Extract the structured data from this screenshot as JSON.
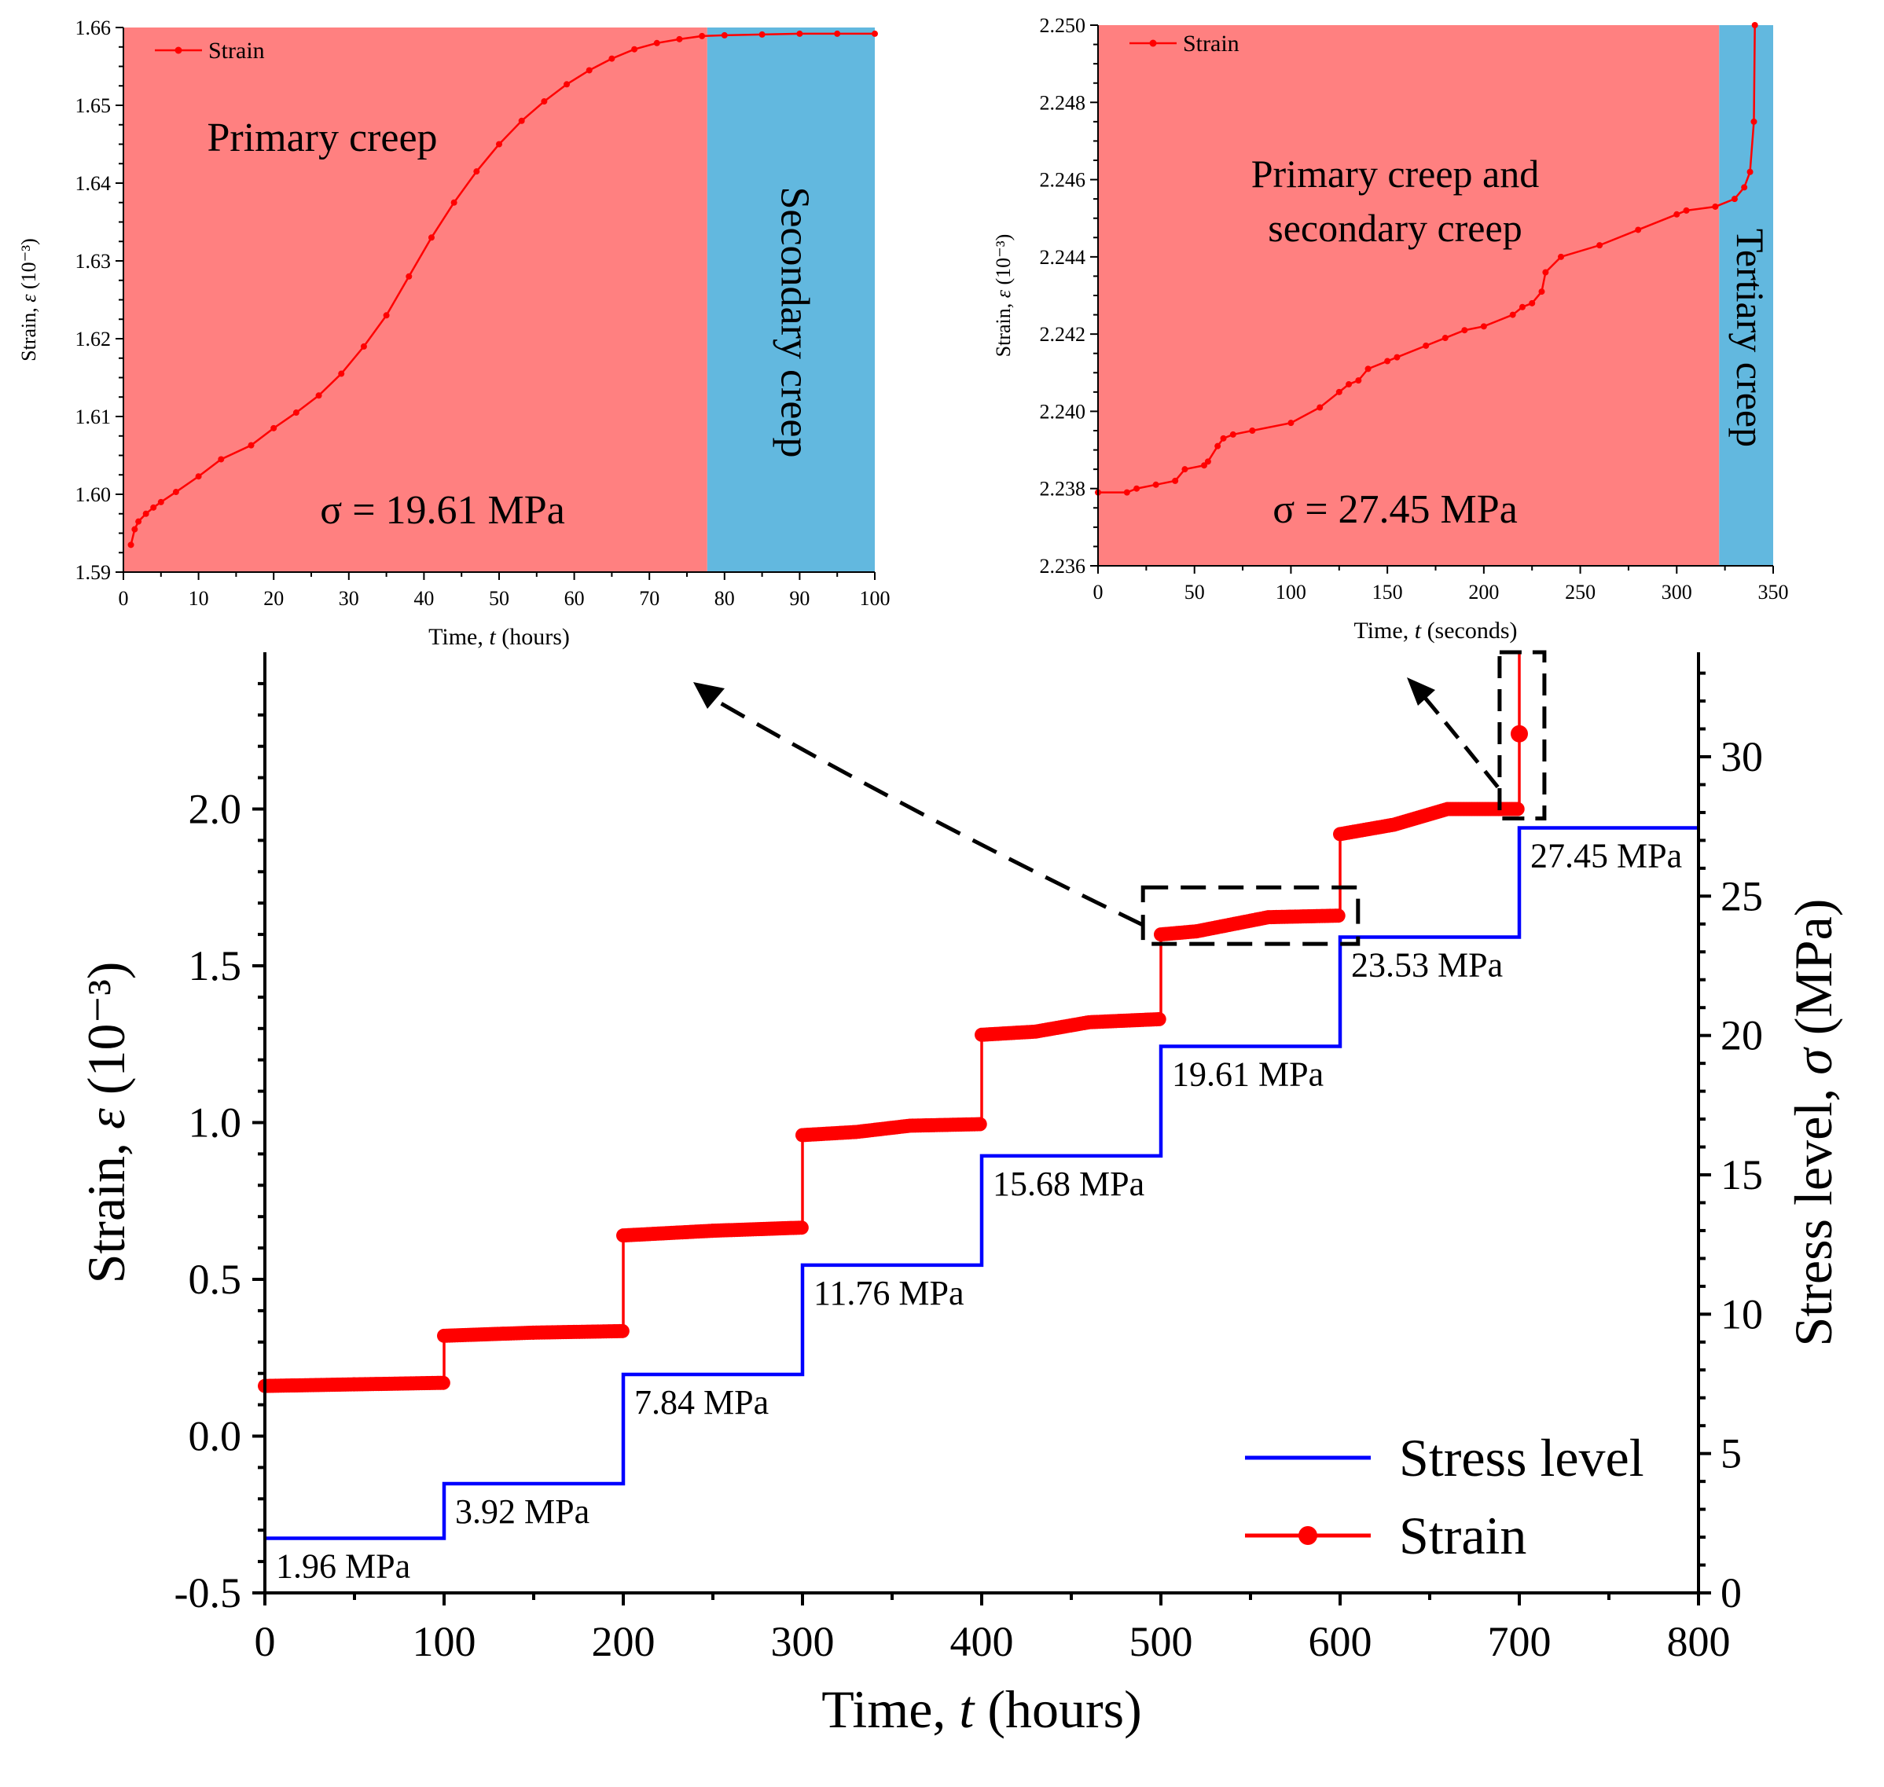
{
  "colors": {
    "strain": "#ff0000",
    "stress": "#0000ff",
    "primary_region": "#ff8080",
    "secondary_region": "#62b8df",
    "axis": "#000000"
  },
  "chart_data": [
    {
      "id": "inset-primary-secondary",
      "type": "line",
      "xlabel": "Time, t (hours)",
      "ylabel": "Strain, ε (10⁻³)",
      "xlim": [
        0,
        100
      ],
      "ylim": [
        1.59,
        1.66
      ],
      "xticks": [
        0,
        10,
        20,
        30,
        40,
        50,
        60,
        70,
        80,
        90,
        100
      ],
      "yticks": [
        1.59,
        1.6,
        1.61,
        1.62,
        1.63,
        1.64,
        1.65,
        1.66
      ],
      "ytick_labels": [
        "1.59",
        "1.60",
        "1.61",
        "1.62",
        "1.63",
        "1.64",
        "1.65",
        "1.66"
      ],
      "legend": "Strain",
      "stress_label": "σ = 19.61 MPa",
      "regions": [
        {
          "label": "Primary creep",
          "x_from": 0,
          "x_to": 77.7,
          "color_key": "primary_region"
        },
        {
          "label": "Secondary creep",
          "x_from": 77.7,
          "x_to": 100,
          "color_key": "secondary_region"
        }
      ],
      "series": [
        {
          "name": "Strain",
          "x": [
            1,
            1.5,
            2,
            3,
            4,
            5,
            7,
            10,
            13,
            17,
            20,
            23,
            26,
            29,
            32,
            35,
            38,
            41,
            44,
            47,
            50,
            53,
            56,
            59,
            62,
            65,
            68,
            71,
            74,
            77,
            80,
            85,
            90,
            95,
            100
          ],
          "y": [
            1.5935,
            1.5955,
            1.5965,
            1.5975,
            1.5983,
            1.599,
            1.6003,
            1.6023,
            1.6045,
            1.6063,
            1.6085,
            1.6105,
            1.6127,
            1.6155,
            1.619,
            1.623,
            1.628,
            1.633,
            1.6375,
            1.6415,
            1.645,
            1.648,
            1.6505,
            1.6527,
            1.6545,
            1.656,
            1.6572,
            1.658,
            1.6585,
            1.6589,
            1.659,
            1.6591,
            1.6592,
            1.6592,
            1.6592
          ]
        }
      ]
    },
    {
      "id": "inset-tertiary",
      "type": "line",
      "xlabel": "Time, t (seconds)",
      "ylabel": "Strain, ε (10⁻³)",
      "xlim": [
        0,
        350
      ],
      "ylim": [
        2.236,
        2.25
      ],
      "xticks": [
        0,
        50,
        100,
        150,
        200,
        250,
        300,
        350
      ],
      "yticks": [
        2.236,
        2.238,
        2.24,
        2.242,
        2.244,
        2.246,
        2.248,
        2.25
      ],
      "ytick_labels": [
        "2.236",
        "2.238",
        "2.240",
        "2.242",
        "2.244",
        "2.246",
        "2.248",
        "2.250"
      ],
      "legend": "Strain",
      "stress_label": "σ = 27.45 MPa",
      "regions": [
        {
          "label": "Primary creep and secondary creep",
          "label_lines": [
            "Primary creep and",
            "secondary creep"
          ],
          "x_from": 0,
          "x_to": 322,
          "color_key": "primary_region"
        },
        {
          "label": "Tertiary creep",
          "x_from": 322,
          "x_to": 350,
          "color_key": "secondary_region"
        }
      ],
      "series": [
        {
          "name": "Strain",
          "x": [
            0,
            15,
            20,
            30,
            40,
            45,
            55,
            57,
            62,
            65,
            70,
            80,
            100,
            115,
            125,
            130,
            135,
            140,
            150,
            155,
            170,
            180,
            190,
            200,
            215,
            220,
            225,
            230,
            232,
            240,
            260,
            280,
            300,
            305,
            320,
            330,
            335,
            338,
            340,
            340.5
          ],
          "y": [
            2.2379,
            2.2379,
            2.238,
            2.2381,
            2.2382,
            2.2385,
            2.2386,
            2.2387,
            2.2391,
            2.2393,
            2.2394,
            2.2395,
            2.2397,
            2.2401,
            2.2405,
            2.2407,
            2.2408,
            2.2411,
            2.2413,
            2.2414,
            2.2417,
            2.2419,
            2.2421,
            2.2422,
            2.2425,
            2.2427,
            2.2428,
            2.2431,
            2.2436,
            2.244,
            2.2443,
            2.2447,
            2.2451,
            2.2452,
            2.2453,
            2.2455,
            2.2458,
            2.2462,
            2.2475,
            2.25
          ]
        }
      ]
    },
    {
      "id": "main",
      "type": "line",
      "xlabel": "Time, t (hours)",
      "ylabel": "Strain, ε (10⁻³)",
      "y2label": "Stress level, σ (MPa)",
      "xlim": [
        0,
        800
      ],
      "ylim": [
        -0.5,
        2.5
      ],
      "y2lim": [
        0,
        33.75
      ],
      "xticks": [
        0,
        100,
        200,
        300,
        400,
        500,
        600,
        700,
        800
      ],
      "yticks": [
        -0.5,
        0,
        0.5,
        1.0,
        1.5,
        2.0
      ],
      "ytick_labels": [
        "-0.5",
        "0.0",
        "0.5",
        "1.0",
        "1.5",
        "2.0"
      ],
      "y2ticks": [
        0,
        5,
        10,
        15,
        20,
        25,
        30
      ],
      "legend_position": "bottom-right",
      "stress_labels": [
        "1.96 MPa",
        "3.92 MPa",
        "7.84 MPa",
        "11.76 MPa",
        "15.68 MPa",
        "19.61 MPa",
        "23.53 MPa",
        "27.45 MPa"
      ],
      "series": [
        {
          "name": "Stress level",
          "axis": "right",
          "x": [
            0,
            100,
            100,
            200,
            200,
            300,
            300,
            400,
            400,
            500,
            500,
            600,
            600,
            700,
            700,
            800
          ],
          "y": [
            1.96,
            1.96,
            3.92,
            3.92,
            7.84,
            7.84,
            11.76,
            11.76,
            15.68,
            15.68,
            19.61,
            19.61,
            23.53,
            23.53,
            27.45,
            27.45
          ]
        },
        {
          "name": "Strain",
          "axis": "left",
          "x": [
            0,
            50,
            100,
            100,
            150,
            200,
            200,
            250,
            300,
            300,
            330,
            360,
            400,
            400,
            430,
            460,
            500,
            500,
            520,
            560,
            600,
            600,
            630,
            660,
            700,
            700,
            700
          ],
          "y": [
            0.16,
            0.165,
            0.17,
            0.32,
            0.33,
            0.335,
            0.64,
            0.655,
            0.665,
            0.96,
            0.97,
            0.99,
            0.995,
            1.28,
            1.29,
            1.32,
            1.33,
            1.6,
            1.61,
            1.655,
            1.66,
            1.92,
            1.95,
            2.0,
            2.0,
            2.24,
            2.5
          ]
        }
      ]
    }
  ]
}
